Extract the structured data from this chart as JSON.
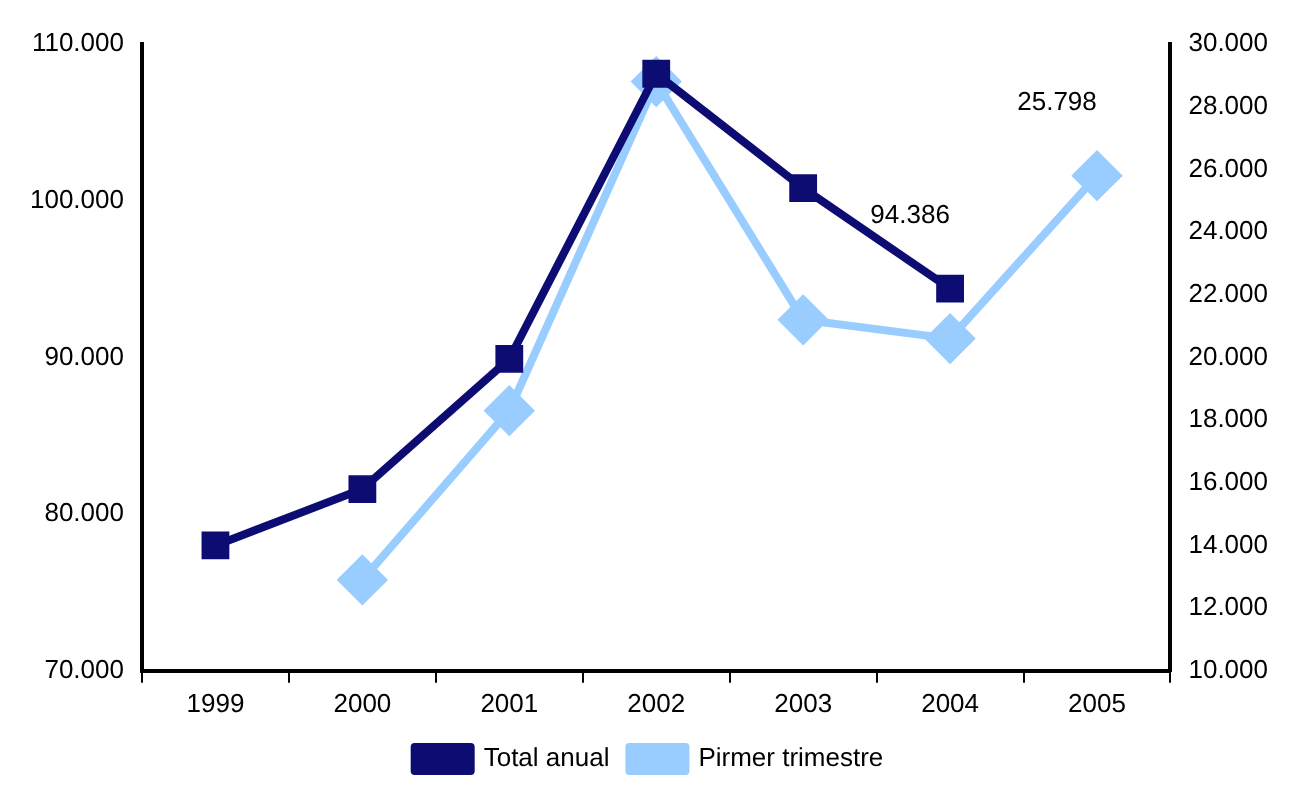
{
  "chart_data": {
    "type": "line",
    "categories": [
      "1999",
      "2000",
      "2001",
      "2002",
      "2003",
      "2004",
      "2005"
    ],
    "series": [
      {
        "name": "Total anual",
        "color": "#0c0c73",
        "marker": "square",
        "values": [
          78000,
          81600,
          89900,
          108100,
          100800,
          94386,
          null
        ],
        "value_labels": [
          null,
          null,
          null,
          null,
          null,
          "94.386",
          null
        ]
      },
      {
        "name": "Pirmer trimestre",
        "color": "#99ccff",
        "marker": "diamond",
        "axis": "y2",
        "values": [
          null,
          12900,
          18300,
          28800,
          21200,
          20600,
          25798
        ],
        "value_labels": [
          null,
          null,
          null,
          null,
          null,
          null,
          "25.798"
        ]
      }
    ],
    "ylim": [
      70000,
      110000
    ],
    "yticks": [
      {
        "value": 70000,
        "label": "70.000"
      },
      {
        "value": 80000,
        "label": "80.000"
      },
      {
        "value": 90000,
        "label": "90.000"
      },
      {
        "value": 100000,
        "label": "100.000"
      },
      {
        "value": 110000,
        "label": "110.000"
      }
    ],
    "y2lim": [
      10000,
      30000
    ],
    "y2ticks": [
      {
        "value": 10000,
        "label": "10.000"
      },
      {
        "value": 12000,
        "label": "12.000"
      },
      {
        "value": 14000,
        "label": "14.000"
      },
      {
        "value": 16000,
        "label": "16.000"
      },
      {
        "value": 18000,
        "label": "18.000"
      },
      {
        "value": 20000,
        "label": "20.000"
      },
      {
        "value": 22000,
        "label": "22.000"
      },
      {
        "value": 24000,
        "label": "24.000"
      },
      {
        "value": 26000,
        "label": "26.000"
      },
      {
        "value": 28000,
        "label": "28.000"
      },
      {
        "value": 30000,
        "label": "30.000"
      }
    ],
    "grid": false,
    "legend": "bottom",
    "line_style": "solid"
  }
}
